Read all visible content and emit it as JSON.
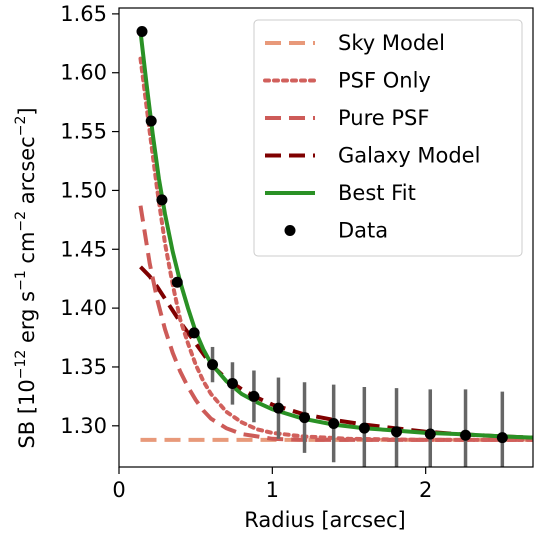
{
  "chart_data": {
    "type": "line",
    "xlabel": "Radius [arcsec]",
    "ylabel_parts": {
      "sb": "SB [10",
      "exp1": "−12",
      "erg": " erg s",
      "exp2": "−1",
      "cm": " cm",
      "exp3": "−2",
      "arcsec": " arcsec",
      "exp4": "−2",
      "close": "]"
    },
    "xlim": [
      0,
      2.7
    ],
    "ylim": [
      1.265,
      1.655
    ],
    "x_ticks": [
      0,
      1,
      2
    ],
    "x_tick_labels": [
      "0",
      "1",
      "2"
    ],
    "y_ticks": [
      1.3,
      1.35,
      1.4,
      1.45,
      1.5,
      1.55,
      1.6,
      1.65
    ],
    "y_tick_labels": [
      "1.30",
      "1.35",
      "1.40",
      "1.45",
      "1.50",
      "1.55",
      "1.60",
      "1.65"
    ],
    "grid": false,
    "legend_position": "upper right",
    "series": [
      {
        "name": "Sky Model",
        "style": "dashed",
        "color": "#e8997a",
        "x": [
          0.14,
          2.7
        ],
        "y": [
          1.288,
          1.288
        ]
      },
      {
        "name": "PSF Only",
        "style": "dotted",
        "color": "#d1605c",
        "x": [
          0.14,
          0.2,
          0.25,
          0.3,
          0.35,
          0.4,
          0.45,
          0.5,
          0.55,
          0.6,
          0.7,
          0.8,
          0.9,
          1.0,
          1.2,
          1.5,
          2.0,
          2.7
        ],
        "y": [
          1.612,
          1.55,
          1.5,
          1.455,
          1.42,
          1.39,
          1.37,
          1.352,
          1.338,
          1.327,
          1.312,
          1.303,
          1.297,
          1.294,
          1.291,
          1.289,
          1.288,
          1.288
        ]
      },
      {
        "name": "Pure PSF",
        "style": "dashed",
        "color": "#cd5b58",
        "x": [
          0.14,
          0.2,
          0.25,
          0.3,
          0.35,
          0.4,
          0.45,
          0.5,
          0.55,
          0.6,
          0.7,
          0.8,
          0.9,
          1.0,
          1.2,
          1.5,
          2.0,
          2.7
        ],
        "y": [
          1.487,
          1.438,
          1.407,
          1.382,
          1.362,
          1.346,
          1.333,
          1.322,
          1.313,
          1.306,
          1.298,
          1.293,
          1.291,
          1.289,
          1.288,
          1.288,
          1.288,
          1.288
        ]
      },
      {
        "name": "Galaxy Model",
        "style": "dashed",
        "color": "#7f0000",
        "x": [
          0.14,
          0.2,
          0.25,
          0.3,
          0.35,
          0.4,
          0.45,
          0.5,
          0.6,
          0.7,
          0.8,
          0.9,
          1.0,
          1.2,
          1.4,
          1.6,
          1.8,
          2.0,
          2.2,
          2.5,
          2.7
        ],
        "y": [
          1.435,
          1.427,
          1.418,
          1.408,
          1.398,
          1.388,
          1.379,
          1.37,
          1.352,
          1.34,
          1.331,
          1.324,
          1.318,
          1.31,
          1.305,
          1.301,
          1.298,
          1.295,
          1.293,
          1.291,
          1.29
        ]
      },
      {
        "name": "Best Fit",
        "style": "solid",
        "color": "#2a9125",
        "x": [
          0.14,
          0.18,
          0.22,
          0.26,
          0.3,
          0.35,
          0.4,
          0.45,
          0.5,
          0.55,
          0.6,
          0.7,
          0.8,
          0.9,
          1.0,
          1.1,
          1.2,
          1.4,
          1.6,
          1.8,
          2.0,
          2.2,
          2.5,
          2.7
        ],
        "y": [
          1.635,
          1.59,
          1.548,
          1.51,
          1.48,
          1.448,
          1.422,
          1.4,
          1.38,
          1.365,
          1.353,
          1.338,
          1.327,
          1.32,
          1.314,
          1.31,
          1.306,
          1.301,
          1.298,
          1.296,
          1.294,
          1.293,
          1.291,
          1.29
        ]
      }
    ],
    "data_series": {
      "name": "Data",
      "marker": "circle",
      "color": "#000000",
      "errorbar_color": "#666666",
      "x": [
        0.15,
        0.21,
        0.28,
        0.38,
        0.49,
        0.61,
        0.74,
        0.88,
        1.04,
        1.21,
        1.4,
        1.6,
        1.81,
        2.03,
        2.26,
        2.5
      ],
      "y": [
        1.635,
        1.559,
        1.492,
        1.422,
        1.379,
        1.352,
        1.336,
        1.325,
        1.315,
        1.307,
        1.302,
        1.298,
        1.295,
        1.293,
        1.292,
        1.29
      ],
      "yerr": [
        0.0,
        0.0,
        0.0,
        0.0,
        0.0,
        0.015,
        0.018,
        0.022,
        0.026,
        0.03,
        0.033,
        0.035,
        0.037,
        0.038,
        0.039,
        0.039
      ]
    },
    "legend": [
      {
        "label": "Sky Model",
        "style": "dashed",
        "color": "#e8997a"
      },
      {
        "label": "PSF Only",
        "style": "dotted",
        "color": "#d1605c"
      },
      {
        "label": "Pure PSF",
        "style": "dashed",
        "color": "#cd5b58"
      },
      {
        "label": "Galaxy Model",
        "style": "dashed",
        "color": "#7f0000"
      },
      {
        "label": "Best Fit",
        "style": "solid",
        "color": "#2a9125"
      },
      {
        "label": "Data",
        "style": "marker",
        "color": "#000000"
      }
    ]
  }
}
